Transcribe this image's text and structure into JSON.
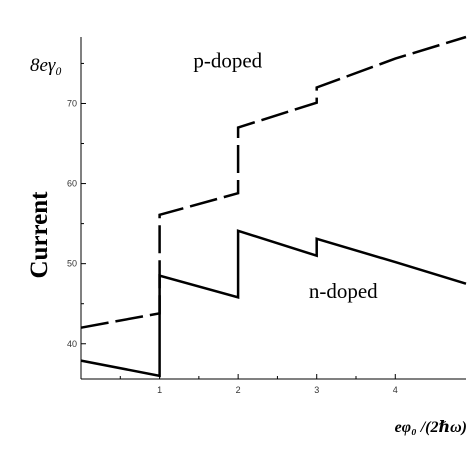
{
  "chart_data": {
    "type": "line",
    "ylabel": "Current",
    "y_unit_label": "8eγ₀",
    "xlabel": "eφ₀ /(2ℏω)",
    "xlim": [
      0,
      4.9
    ],
    "ylim": [
      35.6,
      78.3
    ],
    "x_ticks": [
      1,
      2,
      3,
      4
    ],
    "y_ticks": [
      40,
      50,
      60,
      70
    ],
    "grid": false,
    "series": [
      {
        "name": "p-doped",
        "style": "dashed",
        "points": [
          [
            0,
            42
          ],
          [
            1,
            43.8
          ],
          [
            1,
            56.1
          ],
          [
            2,
            58.8
          ],
          [
            2,
            67
          ],
          [
            3,
            70.1
          ],
          [
            3,
            72
          ],
          [
            4,
            75.6
          ],
          [
            4.9,
            78.3
          ]
        ]
      },
      {
        "name": "n-doped",
        "style": "solid",
        "points": [
          [
            0,
            37.9
          ],
          [
            1,
            36
          ],
          [
            1,
            48.5
          ],
          [
            2,
            45.8
          ],
          [
            2,
            54.1
          ],
          [
            3,
            51
          ],
          [
            3,
            53.1
          ],
          [
            4,
            50.2
          ],
          [
            4.9,
            47.5
          ]
        ]
      }
    ],
    "annotations": [
      {
        "text": "p-doped",
        "x": 1.43,
        "y": 74.5
      },
      {
        "text": "n-doped",
        "x": 2.9,
        "y": 45.7
      }
    ],
    "colors": {
      "lines": "#000000",
      "axes": "#000000"
    }
  }
}
